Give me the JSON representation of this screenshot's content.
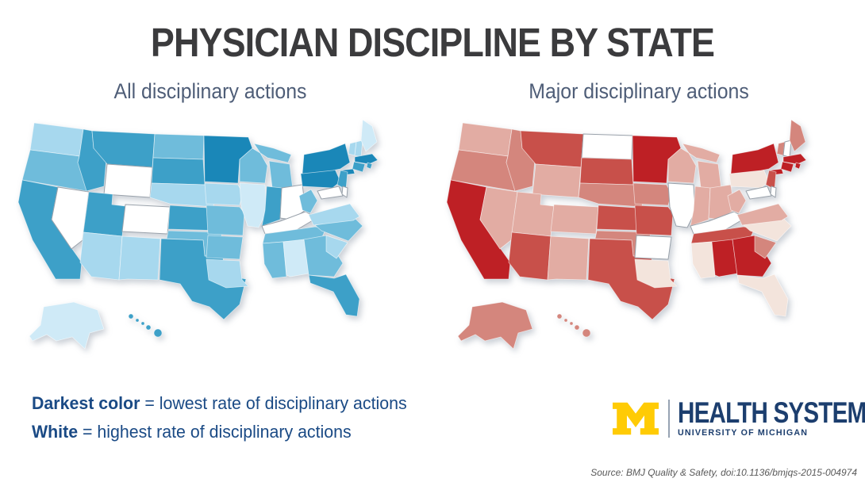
{
  "title": "PHYSICIAN DISCIPLINE BY STATE",
  "maps": [
    {
      "title": "All disciplinary actions"
    },
    {
      "title": "Major disciplinary actions"
    }
  ],
  "legend": {
    "line1": {
      "term": "Darkest color",
      "rest": " = lowest rate of disciplinary actions"
    },
    "line2": {
      "term": "White",
      "rest": " = highest rate of disciplinary actions"
    }
  },
  "logo": {
    "mark": "block-M",
    "primary": "HEALTH SYSTEM",
    "secondary": "UNIVERSITY OF MICHIGAN",
    "maize": "#ffcb05",
    "navy": "#1c3e6e"
  },
  "source": "Source: BMJ Quality & Safety, doi:10.1136/bmjqs-2015-004974",
  "chart_data": {
    "type": "choropleth",
    "geography": "United States, by state (incl. Alaska and Hawaii insets)",
    "shade_scale": "ordinal 0-5: 0 = white (highest rate of disciplinary actions), 5 = darkest (lowest rate of disciplinary actions)",
    "state_names": {
      "AL": "Alabama",
      "AK": "Alaska",
      "AZ": "Arizona",
      "AR": "Arkansas",
      "CA": "California",
      "CO": "Colorado",
      "CT": "Connecticut",
      "DE": "Delaware",
      "FL": "Florida",
      "GA": "Georgia",
      "HI": "Hawaii",
      "ID": "Idaho",
      "IL": "Illinois",
      "IN": "Indiana",
      "IA": "Iowa",
      "KS": "Kansas",
      "KY": "Kentucky",
      "LA": "Louisiana",
      "ME": "Maine",
      "MD": "Maryland",
      "MA": "Massachusetts",
      "MI": "Michigan",
      "MN": "Minnesota",
      "MS": "Mississippi",
      "MO": "Missouri",
      "MT": "Montana",
      "NE": "Nebraska",
      "NV": "Nevada",
      "NH": "New Hampshire",
      "NJ": "New Jersey",
      "NM": "New Mexico",
      "NY": "New York",
      "NC": "North Carolina",
      "ND": "North Dakota",
      "OH": "Ohio",
      "OK": "Oklahoma",
      "OR": "Oregon",
      "PA": "Pennsylvania",
      "RI": "Rhode Island",
      "SC": "South Carolina",
      "SD": "South Dakota",
      "TN": "Tennessee",
      "TX": "Texas",
      "UT": "Utah",
      "VT": "Vermont",
      "VA": "Virginia",
      "WA": "Washington",
      "WV": "West Virginia",
      "WI": "Wisconsin",
      "WY": "Wyoming"
    },
    "series": [
      {
        "name": "All disciplinary actions",
        "palette": [
          "#ffffff",
          "#cfeaf7",
          "#a7d8ee",
          "#6fbcdb",
          "#3da0c8",
          "#1a87b8"
        ],
        "values": {
          "WA": 2,
          "OR": 3,
          "CA": 4,
          "NV": 0,
          "ID": 4,
          "MT": 4,
          "WY": 0,
          "UT": 4,
          "CO": 0,
          "AZ": 2,
          "NM": 2,
          "ND": 3,
          "SD": 4,
          "NE": 2,
          "KS": 4,
          "OK": 3,
          "TX": 4,
          "MN": 5,
          "IA": 2,
          "MO": 3,
          "AR": 3,
          "LA": 2,
          "WI": 3,
          "IL": 1,
          "MI": 3,
          "IN": 4,
          "OH": 0,
          "KY": 0,
          "TN": 3,
          "MS": 3,
          "AL": 1,
          "GA": 3,
          "FL": 4,
          "SC": 2,
          "NC": 3,
          "VA": 2,
          "WV": 3,
          "PA": 5,
          "NY": 5,
          "NJ": 4,
          "MD": 0,
          "DE": 0,
          "VT": 2,
          "NH": 2,
          "ME": 1,
          "MA": 5,
          "CT": 4,
          "RI": 4,
          "AK": 1,
          "HI": 4
        }
      },
      {
        "name": "Major disciplinary actions",
        "palette": [
          "#ffffff",
          "#f3e4dc",
          "#e2aca3",
          "#d4867d",
          "#c8504a",
          "#be2025"
        ],
        "values": {
          "WA": 2,
          "OR": 3,
          "CA": 5,
          "NV": 2,
          "ID": 3,
          "MT": 4,
          "WY": 2,
          "UT": 2,
          "CO": 2,
          "AZ": 4,
          "NM": 2,
          "ND": 0,
          "SD": 4,
          "NE": 3,
          "KS": 4,
          "OK": 3,
          "TX": 4,
          "MN": 5,
          "IA": 3,
          "MO": 4,
          "AR": 0,
          "LA": 1,
          "WI": 2,
          "IL": 0,
          "MI": 2,
          "IN": 2,
          "OH": 2,
          "KY": 0,
          "TN": 4,
          "MS": 1,
          "AL": 5,
          "GA": 5,
          "FL": 1,
          "SC": 3,
          "NC": 1,
          "VA": 2,
          "WV": 2,
          "PA": 1,
          "NY": 5,
          "NJ": 4,
          "MD": 0,
          "DE": 0,
          "VT": 3,
          "NH": 0,
          "ME": 3,
          "MA": 5,
          "CT": 5,
          "RI": 5,
          "AK": 3,
          "HI": 3
        }
      }
    ]
  }
}
